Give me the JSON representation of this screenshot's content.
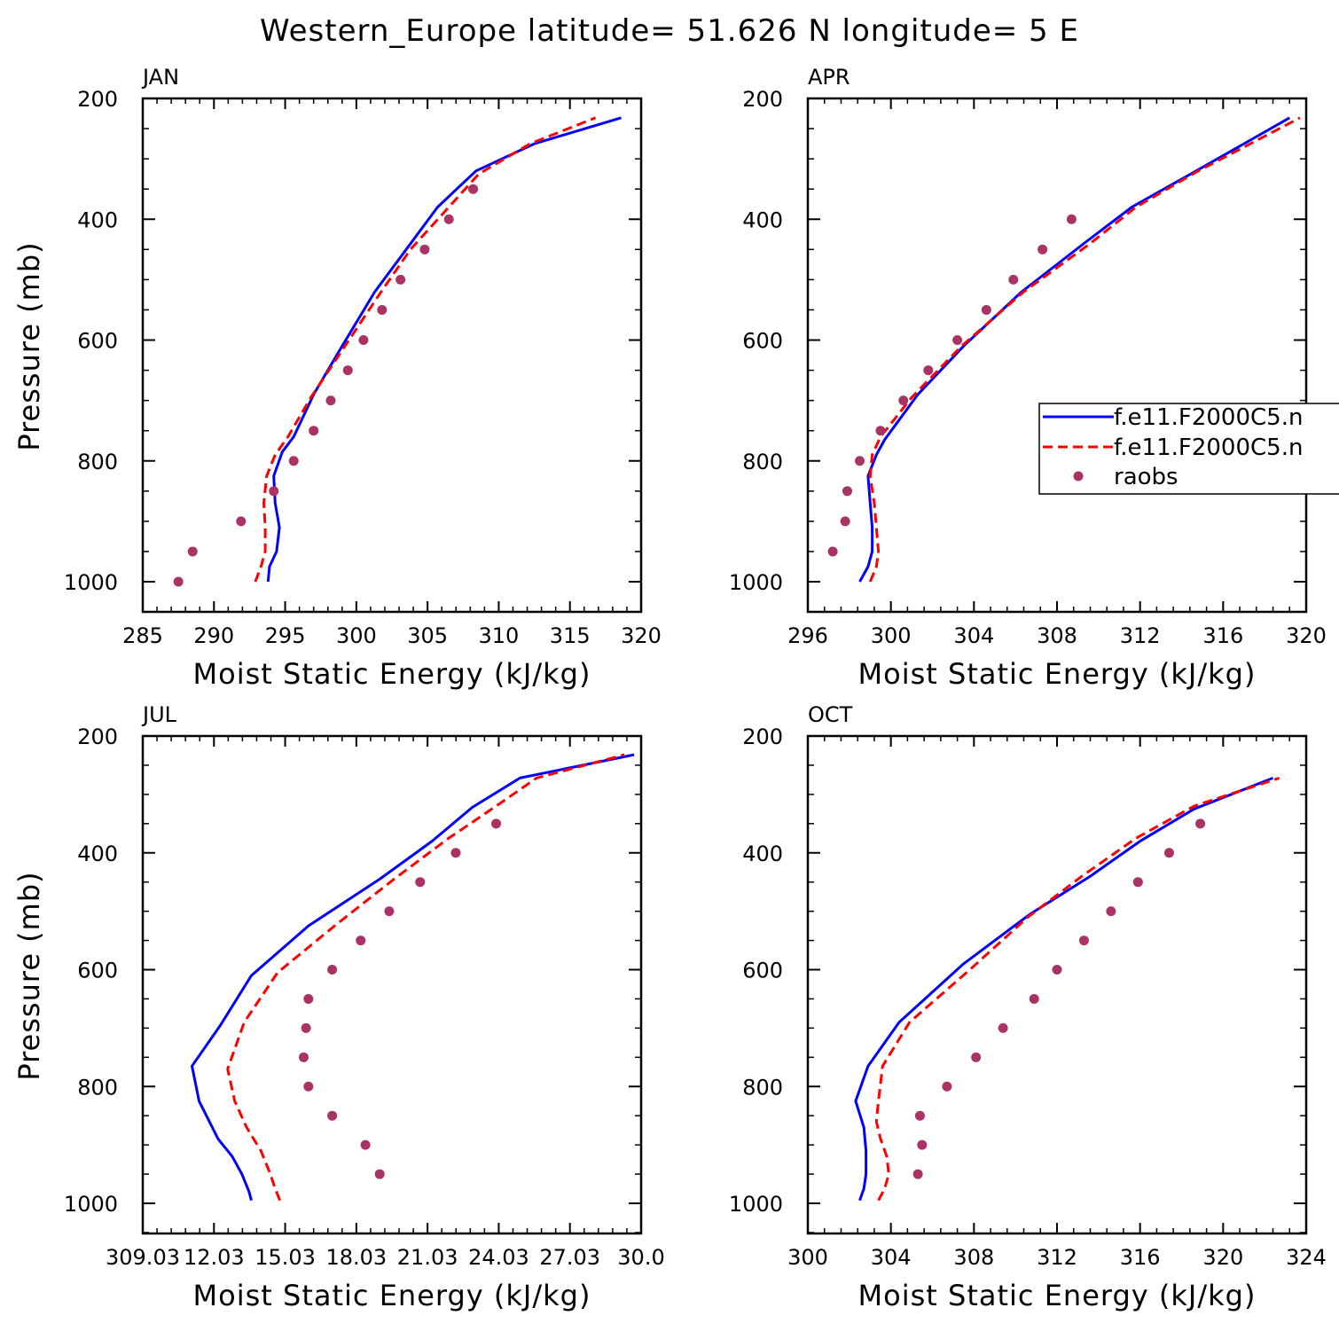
{
  "title": "Western_Europe  latitude= 51.626 N longitude= 5 E",
  "colors": {
    "model1": "#0000ff",
    "model2": "#ff0000",
    "raobs": "#aa3366"
  },
  "legend": {
    "entries": [
      {
        "label": "f.e11.F2000C5.n",
        "style": "solid",
        "color": "#0000ff"
      },
      {
        "label": "f.e11.F2000C5.n",
        "style": "dashed",
        "color": "#ff0000"
      },
      {
        "label": "raobs",
        "style": "marker",
        "color": "#aa3366"
      }
    ]
  },
  "chart_data": [
    {
      "type": "line",
      "panel": "JAN",
      "xlabel": "Moist Static Energy (kJ/kg)",
      "ylabel": "Pressure (mb)",
      "xlim": [
        285,
        320
      ],
      "ylim": [
        1000,
        200
      ],
      "xticks": [
        "285",
        "290",
        "295",
        "300",
        "305",
        "310",
        "315",
        "320"
      ],
      "yticks": [
        "200",
        "400",
        "600",
        "800",
        "1000"
      ],
      "series": [
        {
          "style": "solid",
          "color": "#0000ff",
          "x": [
            293.8,
            293.9,
            294.4,
            294.6,
            294.3,
            294.2,
            294.8,
            295.6,
            297.0,
            299.0,
            301.3,
            303.5,
            305.7,
            308.4,
            312.5,
            318.6
          ],
          "y": [
            1000,
            975,
            950,
            910,
            870,
            825,
            785,
            760,
            690,
            610,
            520,
            450,
            380,
            320,
            275,
            232
          ]
        },
        {
          "style": "dashed",
          "color": "#ff0000",
          "x": [
            292.9,
            293.3,
            293.6,
            293.6,
            293.5,
            293.7,
            294.3,
            295.2,
            296.8,
            299.2,
            301.6,
            303.8,
            306.3,
            308.6,
            312.2,
            316.8
          ],
          "y": [
            1000,
            975,
            950,
            910,
            870,
            825,
            790,
            760,
            695,
            610,
            525,
            450,
            385,
            325,
            275,
            232
          ]
        },
        {
          "style": "marker",
          "color": "#aa3366",
          "x": [
            287.5,
            288.5,
            291.9,
            294.2,
            295.6,
            297.0,
            298.2,
            299.4,
            300.5,
            301.8,
            303.1,
            304.8,
            306.5,
            308.2
          ],
          "y": [
            1000,
            950,
            900,
            850,
            800,
            750,
            700,
            650,
            600,
            550,
            500,
            450,
            400,
            350
          ]
        }
      ]
    },
    {
      "type": "line",
      "panel": "APR",
      "xlabel": "Moist Static Energy (kJ/kg)",
      "ylabel": "",
      "xlim": [
        296,
        320
      ],
      "ylim": [
        1000,
        200
      ],
      "xticks": [
        "296",
        "300",
        "304",
        "308",
        "312",
        "316",
        "320"
      ],
      "yticks": [
        "200",
        "400",
        "600",
        "800",
        "1000"
      ],
      "series": [
        {
          "style": "solid",
          "color": "#0000ff",
          "x": [
            298.5,
            298.9,
            299.1,
            299.1,
            299.0,
            298.9,
            299.3,
            299.7,
            301.3,
            303.5,
            306.3,
            309.3,
            311.6,
            314.6,
            319.2
          ],
          "y": [
            1000,
            975,
            950,
            910,
            870,
            825,
            790,
            765,
            690,
            610,
            520,
            440,
            380,
            322,
            232
          ]
        },
        {
          "style": "dashed",
          "color": "#ff0000",
          "x": [
            299.0,
            299.3,
            299.4,
            299.3,
            299.2,
            299.0,
            299.1,
            299.5,
            301.0,
            303.4,
            306.4,
            309.6,
            311.8,
            314.7,
            319.7
          ],
          "y": [
            1000,
            975,
            950,
            910,
            870,
            825,
            790,
            760,
            695,
            610,
            520,
            440,
            380,
            322,
            232
          ]
        },
        {
          "style": "marker",
          "color": "#aa3366",
          "x": [
            297.2,
            297.8,
            297.9,
            298.5,
            299.5,
            300.6,
            301.8,
            303.2,
            304.6,
            305.9,
            307.3,
            308.7
          ],
          "y": [
            950,
            900,
            850,
            800,
            750,
            700,
            650,
            600,
            550,
            500,
            450,
            400
          ]
        }
      ]
    },
    {
      "type": "line",
      "panel": "JUL",
      "xlabel": "Moist Static Energy (kJ/kg)",
      "ylabel": "Pressure (mb)",
      "xlim": [
        309.03,
        330.0
      ],
      "ylim": [
        1000,
        200
      ],
      "xticks": [
        "309.03",
        "12.03",
        "15.03",
        "18.03",
        "21.03",
        "24.03",
        "27.03",
        "30.0"
      ],
      "yticks": [
        "200",
        "400",
        "600",
        "800",
        "1000"
      ],
      "series": [
        {
          "style": "solid",
          "color": "#0000ff",
          "x": [
            313.6,
            313.5,
            313.2,
            312.8,
            312.2,
            311.4,
            311.1,
            312.3,
            313.6,
            316.0,
            319.0,
            321.2,
            322.9,
            324.9,
            329.7
          ],
          "y": [
            995,
            980,
            950,
            920,
            890,
            825,
            765,
            695,
            610,
            525,
            445,
            380,
            322,
            272,
            232
          ]
        },
        {
          "style": "dashed",
          "color": "#ff0000",
          "x": [
            314.8,
            314.6,
            314.4,
            314.0,
            313.4,
            312.9,
            312.6,
            313.3,
            314.7,
            317.1,
            319.6,
            321.9,
            323.9,
            325.6,
            329.3
          ],
          "y": [
            995,
            975,
            950,
            910,
            870,
            825,
            770,
            690,
            605,
            525,
            445,
            375,
            320,
            272,
            232
          ]
        },
        {
          "style": "marker",
          "color": "#aa3366",
          "x": [
            319.0,
            318.4,
            317.0,
            316.0,
            315.8,
            315.9,
            316.0,
            317.0,
            318.2,
            319.4,
            320.7,
            322.2,
            323.9
          ],
          "y": [
            950,
            900,
            850,
            800,
            750,
            700,
            650,
            600,
            550,
            500,
            450,
            400,
            350
          ]
        }
      ]
    },
    {
      "type": "line",
      "panel": "OCT",
      "xlabel": "Moist Static Energy (kJ/kg)",
      "ylabel": "",
      "xlim": [
        300,
        324
      ],
      "ylim": [
        1000,
        200
      ],
      "xticks": [
        "300",
        "304",
        "308",
        "312",
        "316",
        "320",
        "324"
      ],
      "yticks": [
        "200",
        "400",
        "600",
        "800",
        "1000"
      ],
      "series": [
        {
          "style": "solid",
          "color": "#0000ff",
          "x": [
            302.5,
            302.7,
            302.8,
            302.8,
            302.7,
            302.3,
            302.9,
            304.4,
            307.5,
            310.7,
            313.6,
            316.0,
            318.6,
            322.4
          ],
          "y": [
            995,
            975,
            950,
            910,
            870,
            825,
            765,
            690,
            590,
            505,
            440,
            380,
            325,
            272
          ]
        },
        {
          "style": "dashed",
          "color": "#ff0000",
          "x": [
            303.4,
            303.7,
            303.9,
            303.8,
            303.5,
            303.3,
            303.4,
            303.6,
            304.9,
            307.8,
            310.6,
            313.2,
            315.8,
            318.6,
            322.7
          ],
          "y": [
            995,
            975,
            950,
            920,
            890,
            860,
            825,
            765,
            690,
            600,
            510,
            440,
            375,
            320,
            272
          ]
        },
        {
          "style": "marker",
          "color": "#aa3366",
          "x": [
            305.3,
            305.5,
            305.4,
            306.7,
            308.1,
            309.4,
            310.9,
            312.0,
            313.3,
            314.6,
            315.9,
            317.4,
            318.9
          ],
          "y": [
            950,
            900,
            850,
            800,
            750,
            700,
            650,
            600,
            550,
            500,
            450,
            400,
            350
          ]
        }
      ]
    }
  ]
}
